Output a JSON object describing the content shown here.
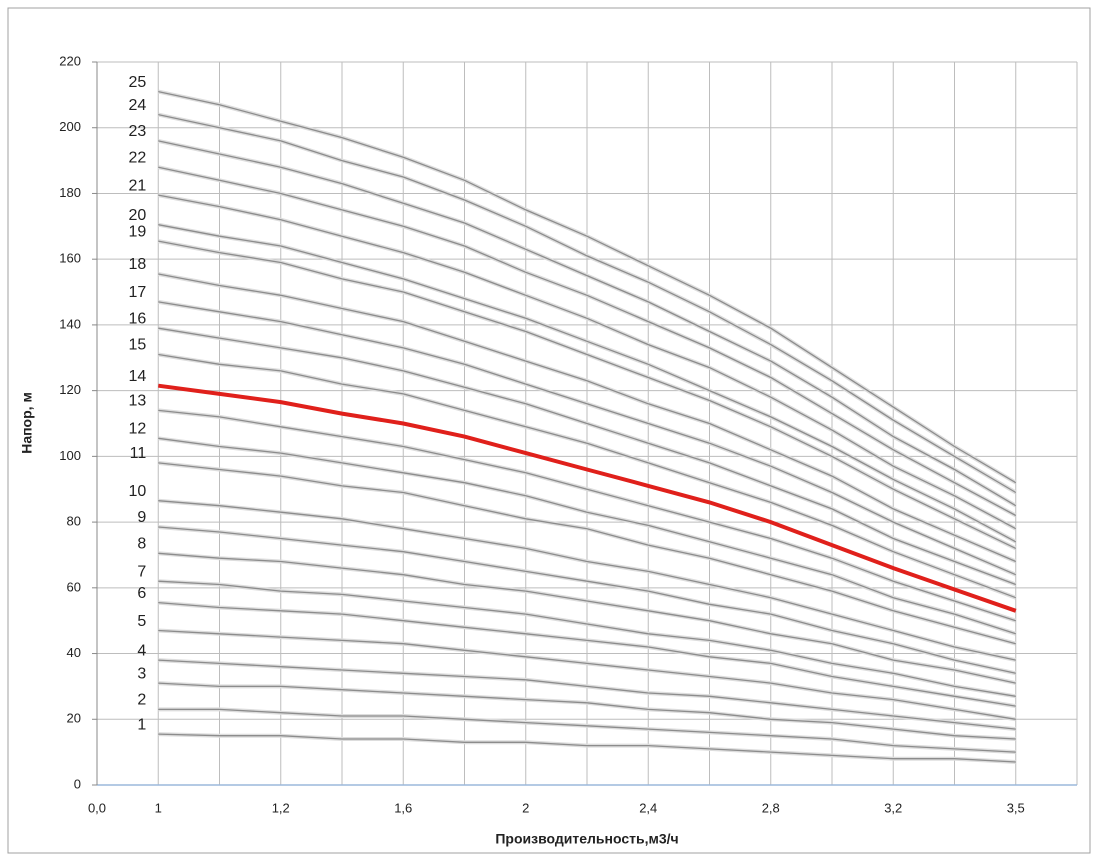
{
  "chart_data": {
    "type": "line",
    "xlabel": "Производительность,м3/ч",
    "ylabel": "Напор, м",
    "categories": [
      "0,0",
      "1",
      null,
      "1,2",
      null,
      "1,6",
      null,
      "2",
      null,
      "2,4",
      null,
      "2,8",
      null,
      "3,2",
      null,
      "3,5"
    ],
    "ylim": [
      0,
      220
    ],
    "yticks": [
      0,
      20,
      40,
      60,
      80,
      100,
      120,
      140,
      160,
      180,
      200,
      220
    ],
    "grid": true,
    "series": [
      {
        "name": "1",
        "color": "#8c8c8c",
        "values": [
          null,
          15.5,
          15,
          15,
          14,
          14,
          13,
          13,
          12,
          12,
          11,
          10,
          9,
          8,
          8,
          7
        ]
      },
      {
        "name": "2",
        "color": "#8c8c8c",
        "values": [
          null,
          23,
          23,
          22,
          21,
          21,
          20,
          19,
          18,
          17,
          16,
          15,
          14,
          12,
          11,
          10
        ]
      },
      {
        "name": "3",
        "color": "#8c8c8c",
        "values": [
          null,
          31,
          30,
          30,
          29,
          28,
          27,
          26,
          25,
          23,
          22,
          20,
          19,
          17,
          15,
          14
        ]
      },
      {
        "name": "4",
        "color": "#8c8c8c",
        "values": [
          null,
          38,
          37,
          36,
          35,
          34,
          33,
          32,
          30,
          28,
          27,
          25,
          23,
          21,
          19,
          17
        ]
      },
      {
        "name": "5",
        "color": "#8c8c8c",
        "values": [
          null,
          47,
          46,
          45,
          44,
          43,
          41,
          39,
          37,
          35,
          33,
          31,
          28,
          26,
          23,
          20
        ]
      },
      {
        "name": "6",
        "color": "#8c8c8c",
        "values": [
          null,
          55.5,
          54,
          53,
          52,
          50,
          48,
          46,
          44,
          42,
          39,
          37,
          33,
          30,
          27,
          24
        ]
      },
      {
        "name": "7",
        "color": "#8c8c8c",
        "values": [
          null,
          62,
          61,
          59,
          58,
          56,
          54,
          52,
          49,
          46,
          44,
          41,
          37,
          34,
          30,
          27
        ]
      },
      {
        "name": "8",
        "color": "#8c8c8c",
        "values": [
          null,
          70.5,
          69,
          68,
          66,
          64,
          61,
          59,
          56,
          53,
          50,
          46,
          43,
          38,
          35,
          31
        ]
      },
      {
        "name": "9",
        "color": "#8c8c8c",
        "values": [
          null,
          78.5,
          77,
          75,
          73,
          71,
          68,
          65,
          62,
          59,
          55,
          52,
          47,
          43,
          38,
          34
        ]
      },
      {
        "name": "10",
        "color": "#8c8c8c",
        "values": [
          null,
          86.5,
          85,
          83,
          81,
          78,
          75,
          72,
          68,
          65,
          61,
          57,
          52,
          47,
          42,
          38
        ]
      },
      {
        "name": "11",
        "color": "#8c8c8c",
        "values": [
          null,
          98,
          96,
          94,
          91,
          89,
          85,
          81,
          78,
          73,
          69,
          64,
          59,
          53,
          48,
          43
        ]
      },
      {
        "name": "12",
        "color": "#8c8c8c",
        "values": [
          null,
          105.5,
          103,
          101,
          98,
          95,
          92,
          88,
          83,
          79,
          74,
          69,
          64,
          57,
          52,
          46
        ]
      },
      {
        "name": "13",
        "color": "#8c8c8c",
        "values": [
          null,
          114,
          112,
          109,
          106,
          103,
          99,
          95,
          90,
          85,
          80,
          75,
          69,
          62,
          56,
          50
        ]
      },
      {
        "name": "14",
        "color": "#e0201b",
        "values": [
          null,
          121.5,
          119,
          116.5,
          113,
          110,
          106,
          101,
          96,
          91,
          86,
          80,
          73,
          66,
          59.5,
          53
        ]
      },
      {
        "name": "15",
        "color": "#8c8c8c",
        "values": [
          null,
          131,
          128,
          126,
          122,
          119,
          114,
          109,
          104,
          98,
          92,
          86,
          79,
          71,
          64,
          57
        ]
      },
      {
        "name": "16",
        "color": "#8c8c8c",
        "values": [
          null,
          139,
          136,
          133,
          130,
          126,
          121,
          116,
          110,
          104,
          98,
          91,
          84,
          75,
          68,
          61
        ]
      },
      {
        "name": "17",
        "color": "#8c8c8c",
        "values": [
          null,
          147,
          144,
          141,
          137,
          133,
          128,
          122,
          116,
          110,
          104,
          97,
          89,
          80,
          72,
          64
        ]
      },
      {
        "name": "18",
        "color": "#8c8c8c",
        "values": [
          null,
          155.5,
          152,
          149,
          145,
          141,
          135,
          129,
          123,
          116,
          110,
          102,
          94,
          84,
          76,
          68
        ]
      },
      {
        "name": "19",
        "color": "#8c8c8c",
        "values": [
          null,
          165.5,
          162,
          159,
          154,
          150,
          144,
          138,
          131,
          124,
          117,
          109,
          100,
          90,
          81,
          72
        ]
      },
      {
        "name": "20",
        "color": "#8c8c8c",
        "values": [
          null,
          170.5,
          167,
          164,
          159,
          154,
          148,
          142,
          135,
          128,
          120,
          112,
          103,
          93,
          84,
          74
        ]
      },
      {
        "name": "21",
        "color": "#8c8c8c",
        "values": [
          null,
          179.5,
          176,
          172,
          167,
          162,
          156,
          149,
          142,
          134,
          127,
          118,
          108,
          97,
          88,
          78
        ]
      },
      {
        "name": "22",
        "color": "#8c8c8c",
        "values": [
          null,
          188,
          184,
          180,
          175,
          170,
          164,
          156,
          149,
          141,
          133,
          124,
          113,
          102,
          92,
          82
        ]
      },
      {
        "name": "23",
        "color": "#8c8c8c",
        "values": [
          null,
          196,
          192,
          188,
          183,
          177,
          171,
          163,
          155,
          147,
          138,
          129,
          118,
          106,
          96,
          85
        ]
      },
      {
        "name": "24",
        "color": "#8c8c8c",
        "values": [
          null,
          204,
          200,
          196,
          190,
          185,
          178,
          170,
          161,
          153,
          144,
          134,
          123,
          111,
          100,
          89
        ]
      },
      {
        "name": "25",
        "color": "#8c8c8c",
        "values": [
          null,
          211,
          207,
          202,
          197,
          191,
          184,
          175,
          167,
          158,
          149,
          139,
          127,
          115,
          103,
          92
        ]
      }
    ]
  }
}
